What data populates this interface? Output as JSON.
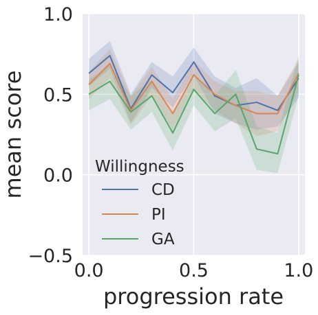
{
  "chart_data": {
    "type": "line",
    "title": "",
    "xlabel": "progression rate",
    "ylabel": "mean score",
    "xlim": [
      -0.03,
      1.03
    ],
    "ylim": [
      -0.5,
      1.0
    ],
    "grid": true,
    "x": [
      0.0,
      0.1,
      0.2,
      0.3,
      0.4,
      0.5,
      0.6,
      0.7,
      0.8,
      0.9,
      1.0
    ],
    "x_ticks": [
      0.0,
      0.5,
      1.0
    ],
    "x_tick_labels": [
      "0.0",
      "0.5",
      "1.0"
    ],
    "y_ticks": [
      -0.5,
      0.0,
      0.5,
      1.0
    ],
    "y_tick_labels": [
      "−0.5",
      "0.0",
      "0.5",
      "1.0"
    ],
    "legend": {
      "title": "Willingness",
      "placement": "lower-left"
    },
    "series": [
      {
        "name": "CD",
        "color": "#4c72b0",
        "values": [
          0.63,
          0.74,
          0.41,
          0.62,
          0.51,
          0.7,
          0.49,
          0.43,
          0.45,
          0.4,
          0.6
        ],
        "lower": [
          0.55,
          0.66,
          0.32,
          0.54,
          0.42,
          0.62,
          0.38,
          0.32,
          0.28,
          0.3,
          0.48
        ],
        "upper": [
          0.72,
          0.83,
          0.5,
          0.7,
          0.61,
          0.79,
          0.61,
          0.54,
          0.6,
          0.49,
          0.7
        ]
      },
      {
        "name": "PI",
        "color": "#dd8452",
        "values": [
          0.56,
          0.69,
          0.4,
          0.58,
          0.38,
          0.62,
          0.5,
          0.43,
          0.38,
          0.38,
          0.63
        ],
        "lower": [
          0.47,
          0.6,
          0.31,
          0.49,
          0.28,
          0.53,
          0.4,
          0.32,
          0.24,
          0.27,
          0.52
        ],
        "upper": [
          0.64,
          0.78,
          0.49,
          0.67,
          0.47,
          0.71,
          0.58,
          0.52,
          0.52,
          0.49,
          0.72
        ]
      },
      {
        "name": "GA",
        "color": "#55a868",
        "values": [
          0.5,
          0.58,
          0.39,
          0.49,
          0.26,
          0.53,
          0.38,
          0.5,
          0.16,
          0.13,
          0.62
        ],
        "lower": [
          0.4,
          0.47,
          0.28,
          0.39,
          0.15,
          0.43,
          0.27,
          0.35,
          0.03,
          0.01,
          0.49
        ],
        "upper": [
          0.59,
          0.68,
          0.49,
          0.59,
          0.37,
          0.63,
          0.49,
          0.65,
          0.3,
          0.26,
          0.74
        ]
      }
    ]
  }
}
